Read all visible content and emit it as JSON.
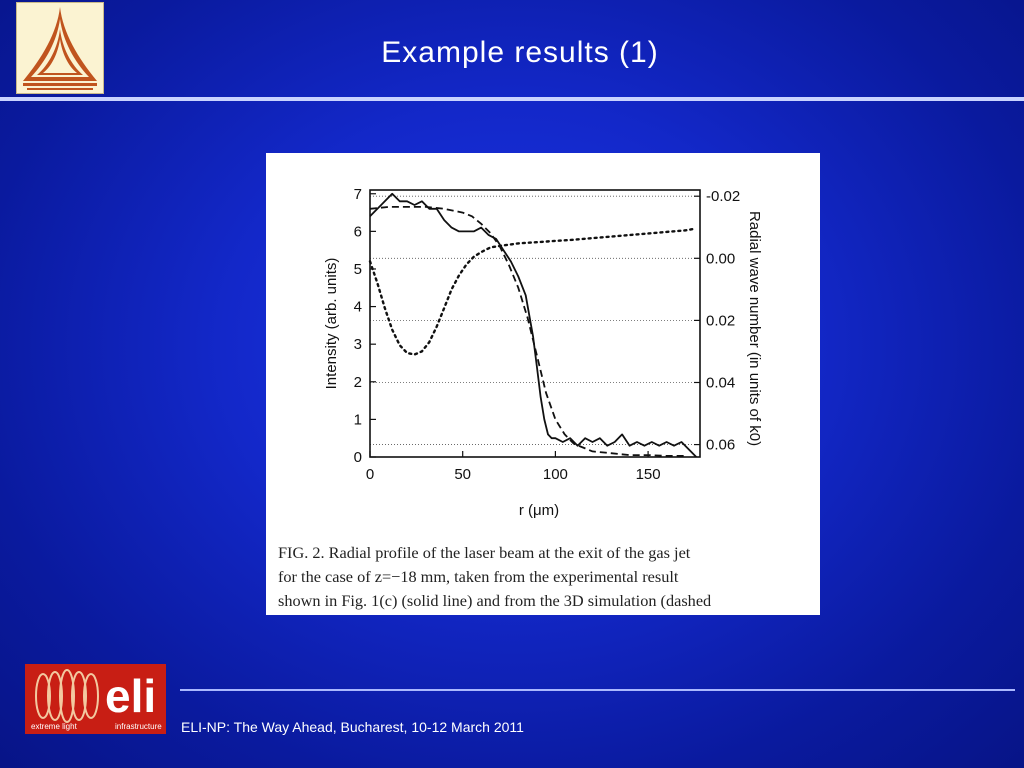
{
  "slide": {
    "title": "Example results (1)",
    "footer_text": "ELI-NP: The Way Ahead, Bucharest, 10-12 March 2011",
    "footer_logo_text": "eli",
    "footer_logo_subtext_left": "extreme light",
    "footer_logo_subtext_right": "infrastructure"
  },
  "colors": {
    "background": "#1328c9",
    "title_text": "#ffffff",
    "header_line": "#c9d3ff",
    "footer_logo_bg": "#c81e14",
    "top_logo_bg": "#fbf3d2",
    "top_logo_stripes": "#c0541e"
  },
  "figure": {
    "caption_lines": [
      "FIG. 2. Radial profile of the laser beam at the exit of the gas jet",
      "for the case of z=−18 mm, taken from the experimental result",
      "shown in Fig. 1(c) (solid line) and from the 3D simulation (dashed"
    ]
  },
  "chart_data": {
    "type": "line",
    "xlabel": "r (μm)",
    "ylabel": "Intensity (arb. units)",
    "y2label": "Radial wave  number (in units of k0)",
    "xlim": [
      0,
      178
    ],
    "ylim": [
      0,
      7.1
    ],
    "y2lim": [
      -0.022,
      0.064
    ],
    "y2_inverted": true,
    "xticks": [
      0,
      50,
      100,
      150
    ],
    "yticks": [
      0,
      1,
      2,
      3,
      4,
      5,
      6,
      7
    ],
    "y2ticks": [
      -0.02,
      0.0,
      0.02,
      0.04,
      0.06
    ],
    "y2ticklabels": [
      "-0.02",
      "0.00",
      "0.02",
      "0.04",
      "0.06"
    ],
    "grid": "horizontal dotted lines at right-axis ticks",
    "legend": "none",
    "series": [
      {
        "style": "solid",
        "axis": "left",
        "x": [
          0,
          4,
          8,
          12,
          16,
          20,
          24,
          28,
          32,
          36,
          40,
          44,
          48,
          52,
          56,
          60,
          64,
          68,
          72,
          76,
          80,
          84,
          88,
          90,
          92,
          94,
          96,
          98,
          100,
          104,
          108,
          112,
          116,
          120,
          124,
          128,
          132,
          136,
          140,
          144,
          148,
          152,
          156,
          160,
          164,
          168,
          172,
          176
        ],
        "y": [
          6.4,
          6.6,
          6.8,
          7.0,
          6.8,
          6.8,
          6.7,
          6.8,
          6.6,
          6.6,
          6.3,
          6.1,
          6.0,
          6.0,
          6.0,
          6.1,
          5.9,
          5.8,
          5.5,
          5.2,
          4.8,
          4.3,
          3.2,
          2.4,
          1.6,
          1.0,
          0.6,
          0.5,
          0.5,
          0.4,
          0.5,
          0.3,
          0.5,
          0.4,
          0.5,
          0.3,
          0.4,
          0.6,
          0.3,
          0.4,
          0.3,
          0.4,
          0.3,
          0.4,
          0.3,
          0.4,
          0.2,
          0.0
        ]
      },
      {
        "style": "dashed",
        "axis": "left",
        "x": [
          0,
          10,
          20,
          30,
          40,
          50,
          55,
          60,
          65,
          70,
          75,
          80,
          85,
          90,
          95,
          100,
          105,
          110,
          120,
          130,
          140,
          150,
          160,
          170
        ],
        "y": [
          6.6,
          6.65,
          6.65,
          6.65,
          6.6,
          6.5,
          6.4,
          6.2,
          5.95,
          5.6,
          5.1,
          4.5,
          3.7,
          2.7,
          1.7,
          1.0,
          0.6,
          0.35,
          0.15,
          0.1,
          0.05,
          0.05,
          0.03,
          0.03
        ]
      },
      {
        "style": "dotted",
        "axis": "right",
        "x": [
          0,
          4,
          8,
          12,
          16,
          20,
          24,
          28,
          32,
          36,
          40,
          44,
          48,
          52,
          56,
          60,
          65,
          70,
          80,
          90,
          100,
          110,
          120,
          130,
          140,
          150,
          160,
          170,
          175
        ],
        "y": [
          0.001,
          0.008,
          0.016,
          0.023,
          0.028,
          0.0305,
          0.031,
          0.03,
          0.027,
          0.022,
          0.016,
          0.01,
          0.0055,
          0.002,
          -0.0005,
          -0.002,
          -0.0035,
          -0.004,
          -0.0048,
          -0.0052,
          -0.0056,
          -0.006,
          -0.0065,
          -0.007,
          -0.0075,
          -0.008,
          -0.0085,
          -0.009,
          -0.0095
        ]
      }
    ]
  }
}
